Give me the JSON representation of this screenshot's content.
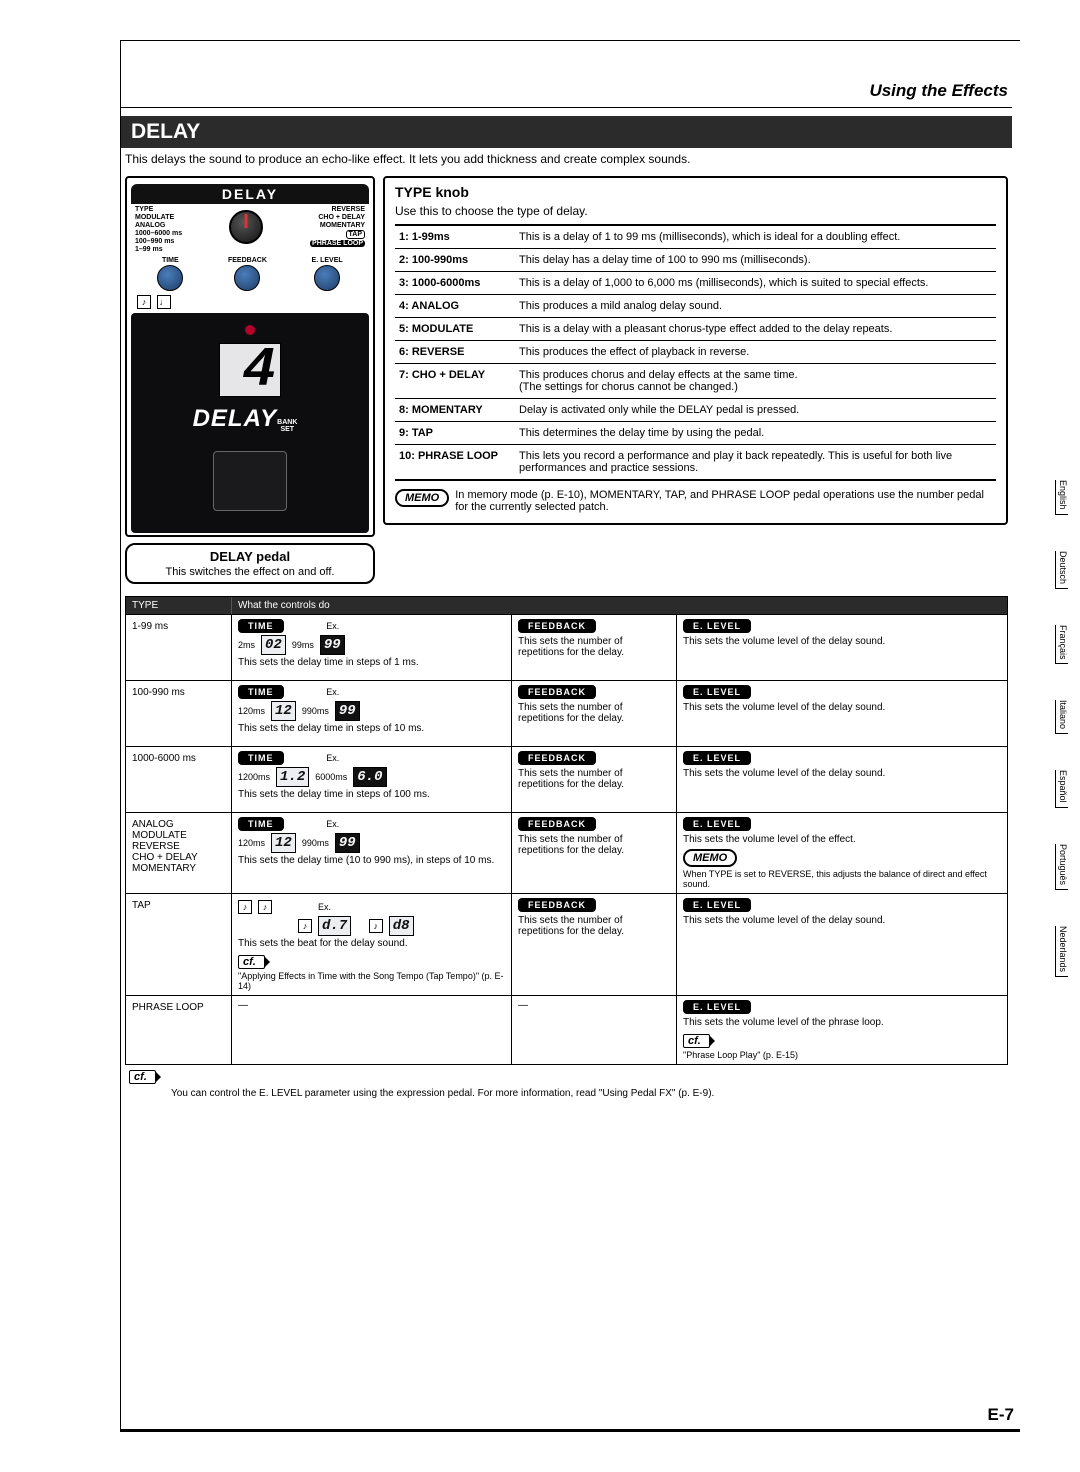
{
  "header": {
    "section": "Using the Effects"
  },
  "section_title": "DELAY",
  "lead": "This delays the sound to produce an echo-like effect. It lets you add thickness and create complex sounds.",
  "pedal": {
    "top_label": "DELAY",
    "type_left": [
      "TYPE",
      "MODULATE",
      "ANALOG",
      "1000–6000 ms",
      "100–990 ms",
      "1–99 ms"
    ],
    "type_right": [
      "REVERSE",
      "CHO + DELAY",
      "MOMENTARY",
      "TAP",
      "PHRASE LOOP"
    ],
    "small_knobs": [
      "TIME",
      "FEEDBACK",
      "E. LEVEL"
    ],
    "display_value": "4",
    "word": "DELAY",
    "bank_set": "BANK\nSET",
    "callout_title": "DELAY pedal",
    "callout_sub": "This switches the effect on and off."
  },
  "type_knob": {
    "title": "TYPE knob",
    "sub": "Use this to choose the type of delay.",
    "rows": [
      {
        "l": "1: 1-99ms",
        "r": "This is a delay of 1 to 99 ms (milliseconds), which is ideal for a doubling effect."
      },
      {
        "l": "2: 100-990ms",
        "r": "This delay has a delay time of 100 to 990 ms (milliseconds)."
      },
      {
        "l": "3: 1000-6000ms",
        "r": "This is a delay of 1,000 to 6,000 ms (milliseconds), which is suited to special effects."
      },
      {
        "l": "4: ANALOG",
        "r": "This produces a mild analog delay sound."
      },
      {
        "l": "5: MODULATE",
        "r": "This is a delay with a pleasant chorus-type effect added to the delay repeats."
      },
      {
        "l": "6: REVERSE",
        "r": "This produces the effect of playback in reverse."
      },
      {
        "l": "7: CHO + DELAY",
        "r": "This produces chorus and delay effects at the same time.\n(The settings for chorus cannot be changed.)"
      },
      {
        "l": "8: MOMENTARY",
        "r": "Delay is activated only while the DELAY pedal is pressed."
      },
      {
        "l": "9: TAP",
        "r": "This determines the delay time by using the pedal."
      },
      {
        "l": "10: PHRASE LOOP",
        "r": "This lets you record a performance and play it back repeatedly. This is useful for both live performances and practice sessions."
      }
    ],
    "memo_label": "MEMO",
    "memo": "In memory mode (p. E-10), MOMENTARY, TAP, and PHRASE LOOP pedal operations use the number pedal for the currently selected patch."
  },
  "controls_table": {
    "headers": {
      "type": "TYPE",
      "controls": "What the controls do"
    },
    "pill_time": "TIME",
    "pill_feedback": "FEEDBACK",
    "pill_elevel": "E. LEVEL",
    "fb_text": "This sets the number of repetitions for the delay.",
    "el_text": "This sets the volume level of the delay sound.",
    "el_text_effect": "This sets the volume level of the effect.",
    "el_text_loop": "This sets the volume level of the phrase loop.",
    "reverse_memo": "When TYPE is set to REVERSE, this adjusts the balance of direct and effect sound.",
    "tap_cf": "\"Applying Effects in Time with the Song Tempo (Tap Tempo)\" (p. E-14)",
    "loop_cf": "\"Phrase Loop Play\" (p. E-15)",
    "rows": [
      {
        "type": "1-99 ms",
        "time_lo": "2ms",
        "seg_lo": "02",
        "time_hi": "99ms",
        "seg_hi": "99",
        "step": "This sets the delay time in steps of 1 ms."
      },
      {
        "type": "100-990 ms",
        "time_lo": "120ms",
        "seg_lo": "12",
        "time_hi": "990ms",
        "seg_hi": "99",
        "step": "This sets the delay time in steps of 10 ms."
      },
      {
        "type": "1000-6000 ms",
        "time_lo": "1200ms",
        "seg_lo": "1.2",
        "time_hi": "6000ms",
        "seg_hi": "6.0",
        "step": "This sets the delay time in steps of 100 ms."
      },
      {
        "type": "ANALOG\nMODULATE\nREVERSE\nCHO + DELAY\nMOMENTARY",
        "time_lo": "120ms",
        "seg_lo": "12",
        "time_hi": "990ms",
        "seg_hi": "99",
        "step": "This sets the delay time (10 to 990 ms), in steps of 10 ms."
      },
      {
        "type": "TAP",
        "seg_lo": "d.7",
        "seg_hi": "d8",
        "step": "This sets the beat for the delay sound."
      },
      {
        "type": "PHRASE LOOP"
      }
    ],
    "ex_label": "Ex."
  },
  "footer": {
    "cf_label": "cf.",
    "note": "You can control the E. LEVEL parameter using the expression pedal. For more information, read \"Using Pedal FX\" (p. E-9).",
    "page": "E-7"
  },
  "memo_label": "MEMO",
  "languages": [
    "English",
    "Deutsch",
    "Français",
    "Italiano",
    "Español",
    "Português",
    "Nederlands"
  ]
}
